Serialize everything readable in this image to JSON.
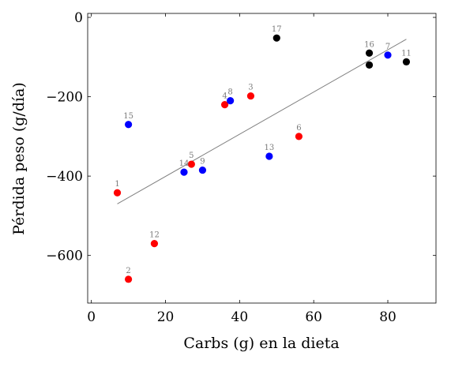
{
  "chart_data": {
    "type": "scatter",
    "xlabel": "Carbs (g) en la dieta",
    "ylabel": "Pérdida peso (g/día)",
    "xlim": [
      -1,
      93
    ],
    "ylim": [
      -720,
      10
    ],
    "xticks": [
      0,
      20,
      40,
      60,
      80
    ],
    "yticks": [
      0,
      -200,
      -400,
      -600
    ],
    "xtick_labels": [
      "0",
      "20",
      "40",
      "60",
      "80"
    ],
    "ytick_labels": [
      "0",
      "−200",
      "−400",
      "−600"
    ],
    "colors": {
      "red": "#ff0000",
      "blue": "#0000ff",
      "black": "#000000",
      "trend": "#808080"
    },
    "points": [
      {
        "label": "1",
        "x": 7,
        "y": -442,
        "color": "red"
      },
      {
        "label": "2",
        "x": 10,
        "y": -660,
        "color": "red"
      },
      {
        "label": "3",
        "x": 43,
        "y": -198,
        "color": "red"
      },
      {
        "label": "4",
        "x": 36,
        "y": -220,
        "color": "red"
      },
      {
        "label": "5",
        "x": 27,
        "y": -370,
        "color": "red"
      },
      {
        "label": "6",
        "x": 56,
        "y": -300,
        "color": "red"
      },
      {
        "label": "7",
        "x": 80,
        "y": -95,
        "color": "blue"
      },
      {
        "label": "8",
        "x": 37.5,
        "y": -210,
        "color": "blue"
      },
      {
        "label": "9",
        "x": 30,
        "y": -385,
        "color": "blue"
      },
      {
        "label": "11",
        "x": 85,
        "y": -112,
        "color": "black"
      },
      {
        "label": "12",
        "x": 17,
        "y": -570,
        "color": "red"
      },
      {
        "label": "13",
        "x": 48,
        "y": -350,
        "color": "blue"
      },
      {
        "label": "14",
        "x": 25,
        "y": -390,
        "color": "blue"
      },
      {
        "label": "15",
        "x": 10,
        "y": -270,
        "color": "blue"
      },
      {
        "label": "16",
        "x": 75,
        "y": -90,
        "color": "black"
      },
      {
        "label": "",
        "x": 75,
        "y": -120,
        "color": "black"
      },
      {
        "label": "17",
        "x": 50,
        "y": -52,
        "color": "black"
      }
    ],
    "trendline": {
      "x": [
        7,
        85
      ],
      "y": [
        -470,
        -55
      ]
    }
  }
}
